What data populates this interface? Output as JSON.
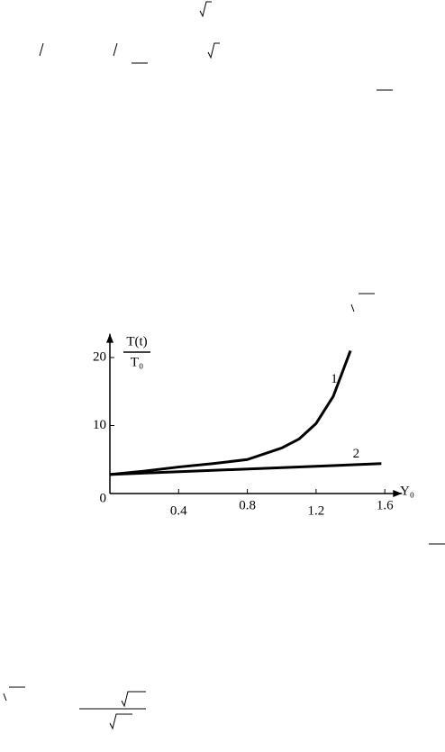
{
  "chart_data": {
    "type": "line",
    "ylabel": "T(t)",
    "ylabel_denominator": "T₀",
    "xlabel": "Y₀",
    "series": [
      {
        "name": "1",
        "color": "#000000",
        "x": [
          0,
          0.2,
          0.4,
          0.6,
          0.8,
          1.0,
          1.1,
          1.2,
          1.3,
          1.4
        ],
        "values": [
          2.8,
          3.3,
          3.9,
          4.4,
          5.0,
          6.7,
          8.0,
          10.3,
          14.3,
          21
        ]
      },
      {
        "name": "2",
        "color": "#000000",
        "x": [
          0,
          1.58
        ],
        "values": [
          2.8,
          4.4
        ]
      }
    ],
    "xlim": [
      0,
      1.7
    ],
    "ylim": [
      0,
      23.5
    ],
    "xticks": [
      0.4,
      0.8,
      1.2,
      1.6
    ],
    "yticks": [
      0,
      10,
      20
    ]
  }
}
